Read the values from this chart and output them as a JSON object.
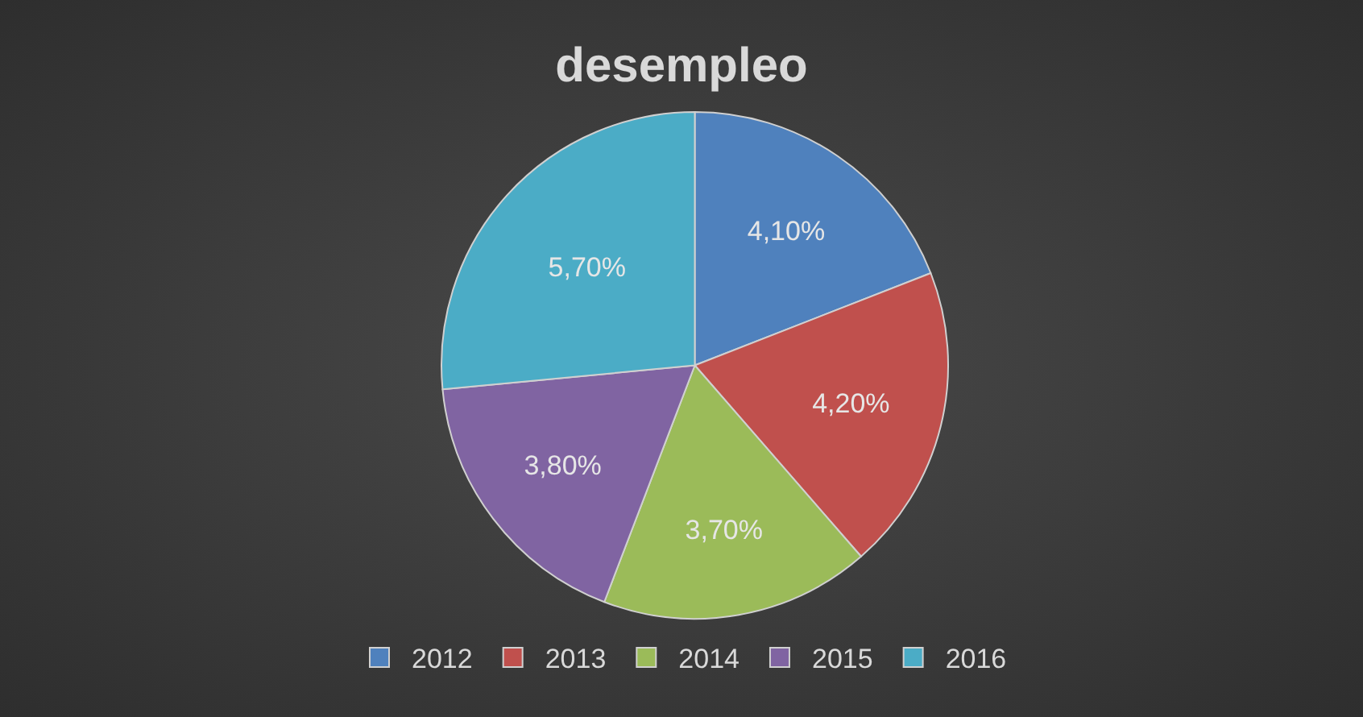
{
  "chart_data": {
    "type": "pie",
    "title": "desempleo",
    "categories": [
      "2012",
      "2013",
      "2014",
      "2015",
      "2016"
    ],
    "values": [
      4.1,
      4.2,
      3.7,
      3.8,
      5.7
    ],
    "value_labels": [
      "4,10%",
      "4,20%",
      "3,70%",
      "3,80%",
      "5,70%"
    ],
    "colors": [
      "#4f81bd",
      "#c0504d",
      "#9bbb59",
      "#8064a2",
      "#4bacc6"
    ],
    "legend": "bottom"
  }
}
